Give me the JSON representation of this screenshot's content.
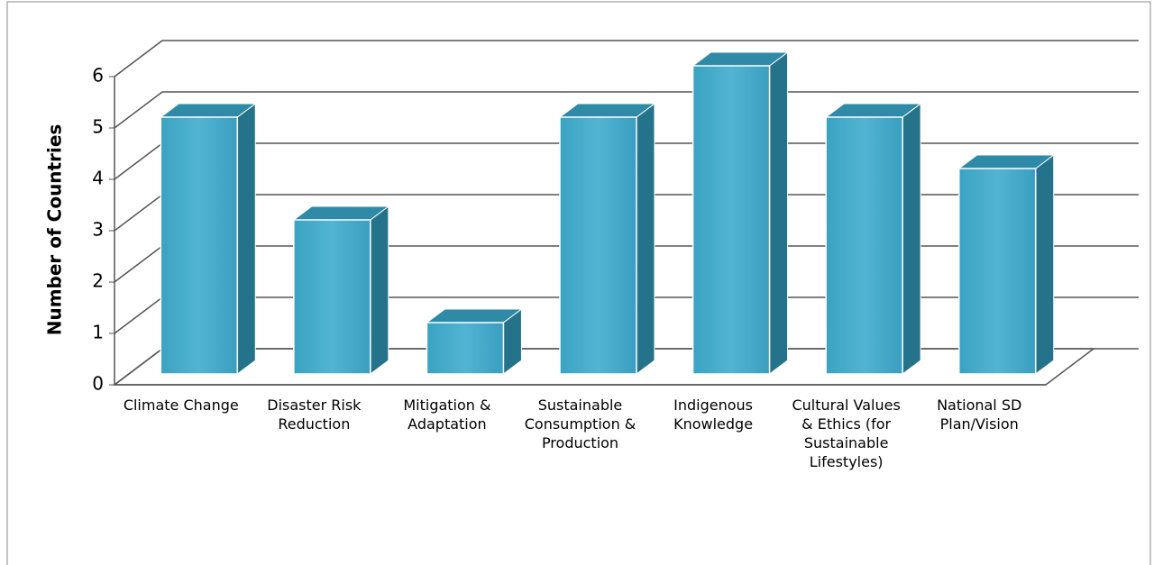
{
  "chart_data": {
    "type": "bar3d",
    "y_label": "Number of Countries",
    "categories": [
      "Climate Change",
      "Disaster Risk Reduction",
      "Mitigation & Adaptation",
      "Sustainable Consumption & Production",
      "Indigenous Knowledge",
      "Cultural Values & Ethics (for Sustainable Lifestyles)",
      "National SD Plan/Vision"
    ],
    "values": [
      5,
      3,
      1,
      5,
      6,
      5,
      4
    ],
    "color": "#4bacc6",
    "ylim": [
      0,
      6
    ],
    "yticks": [
      0,
      1,
      2,
      3,
      4,
      5,
      6
    ],
    "grid": true
  }
}
